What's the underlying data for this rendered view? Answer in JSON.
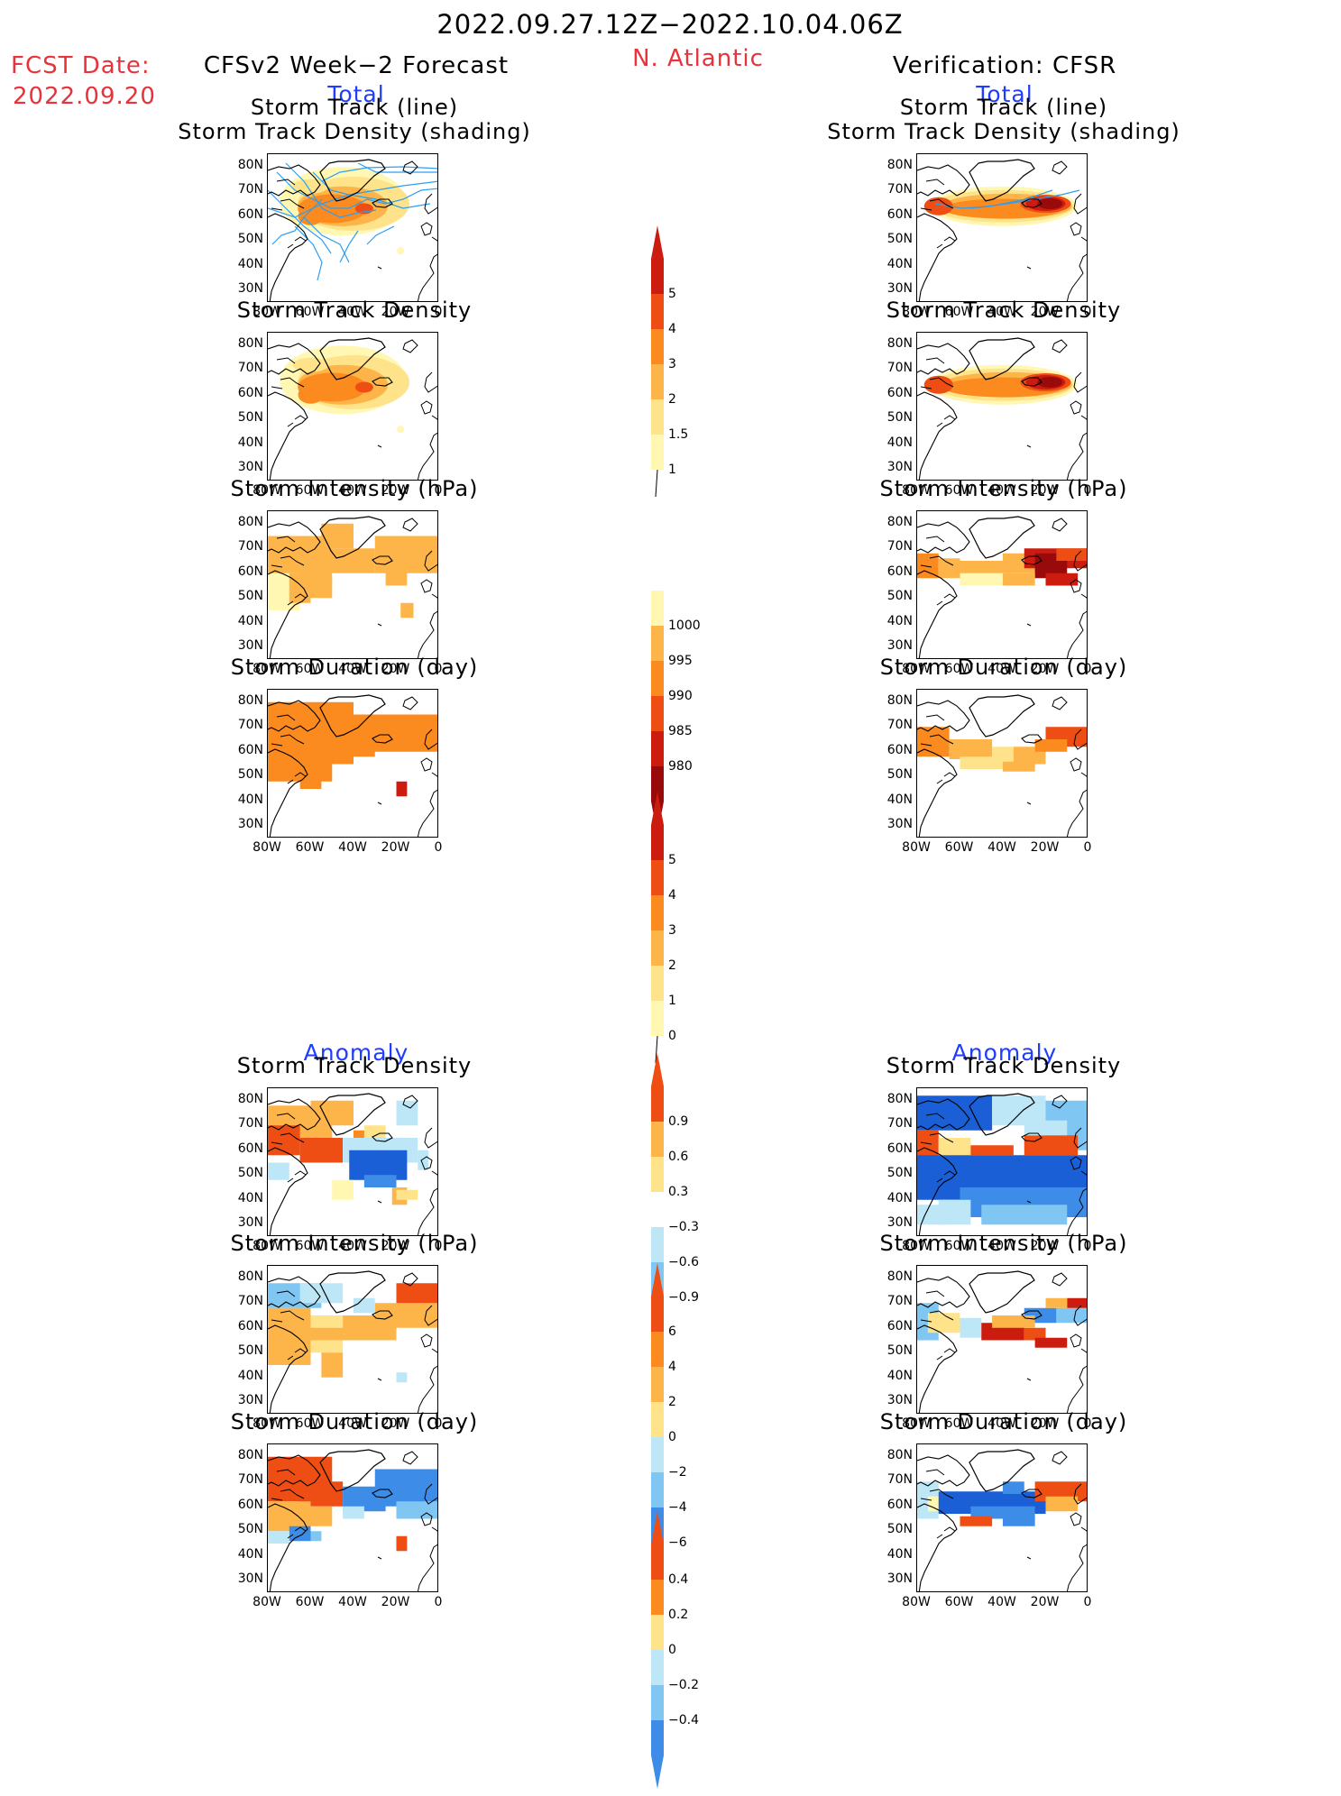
{
  "header": {
    "title": "2022.09.27.12Z−2022.10.04.06Z",
    "fcst_label": "FCST Date:",
    "fcst_date": "2022.09.20",
    "left_header": "CFSv2 Week−2 Forecast",
    "region": "N. Atlantic",
    "right_header": "Verification: CFSR",
    "total_label": "Total",
    "anomaly_label": "Anomaly"
  },
  "panel_titles": {
    "track_line": "Storm Track (line)",
    "track_density_shading": "Storm Track Density (shading)",
    "track_density": "Storm Track Density",
    "intensity": "Storm Intensity (hPa)",
    "duration": "Storm Duration (day)"
  },
  "axes": {
    "lat_ticks": [
      "80N",
      "70N",
      "60N",
      "50N",
      "40N",
      "30N"
    ],
    "lon_ticks": [
      "80W",
      "60W",
      "40W",
      "20W",
      "0"
    ]
  },
  "colors": {
    "yellow1": "#fff7b2",
    "yellow2": "#fee38a",
    "orange1": "#fdb54a",
    "orange2": "#fb8a1f",
    "red1": "#ee4d14",
    "red2": "#cc1c10",
    "red3": "#990a0a",
    "blue1": "#bde7f7",
    "blue2": "#7fc6f2",
    "blue3": "#3d8de8",
    "blue4": "#1a5fd6",
    "track_line": "#2e9ef0"
  },
  "chart_data": [
    {
      "type": "heatmap",
      "panel": "forecast-total-track",
      "title": "Storm Track (line) / Storm Track Density (shading)",
      "region": "N. Atlantic",
      "xlim": [
        -80,
        0
      ],
      "ylim": [
        25,
        85
      ],
      "colorbar": [
        1,
        1.5,
        2,
        3,
        4,
        5
      ],
      "cells": [
        [
          -70,
          64,
          3
        ],
        [
          -60,
          62,
          4
        ],
        [
          -40,
          65,
          3
        ],
        [
          -30,
          63,
          4
        ],
        [
          -20,
          66,
          3
        ],
        [
          -10,
          68,
          2
        ]
      ]
    },
    {
      "type": "heatmap",
      "panel": "cfsr-total-track",
      "title": "Storm Track (line) / Storm Track Density (shading)",
      "xlim": [
        -80,
        0
      ],
      "ylim": [
        25,
        85
      ],
      "colorbar": [
        1,
        1.5,
        2,
        3,
        4,
        5
      ],
      "cells": [
        [
          -75,
          63,
          4
        ],
        [
          -50,
          62,
          3
        ],
        [
          -30,
          64,
          5
        ],
        [
          -20,
          66,
          5
        ],
        [
          -10,
          66,
          4
        ]
      ]
    },
    {
      "type": "heatmap",
      "panel": "forecast-total-intensity",
      "title": "Storm Intensity (hPa)",
      "colorbar": [
        1000,
        995,
        990,
        985,
        980
      ]
    },
    {
      "type": "heatmap",
      "panel": "forecast-total-duration",
      "title": "Storm Duration (day)",
      "colorbar": [
        5,
        4,
        3,
        2,
        1,
        0
      ]
    },
    {
      "type": "heatmap",
      "panel": "anomaly-track-density",
      "title": "Storm Track Density",
      "colorbar": [
        0.9,
        0.6,
        0.3,
        -0.3,
        -0.6,
        -0.9
      ]
    },
    {
      "type": "heatmap",
      "panel": "anomaly-intensity",
      "title": "Storm Intensity (hPa)",
      "colorbar": [
        6,
        4,
        2,
        0,
        -2,
        -4,
        -6
      ]
    },
    {
      "type": "heatmap",
      "panel": "anomaly-duration",
      "title": "Storm Duration (day)",
      "colorbar": [
        0.4,
        0.2,
        0,
        -0.2,
        -0.4
      ]
    }
  ]
}
